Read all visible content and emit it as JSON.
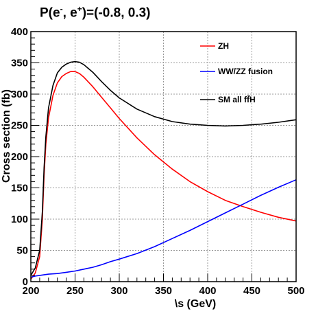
{
  "chart_data": {
    "type": "line",
    "title": "P(e⁻, e⁺)=(-0.8, 0.3)",
    "title_parts": {
      "lead": "P(e",
      "minus": "-",
      "mid": ", e",
      "plus": "+",
      "tail": ")=(-0.8, 0.3)"
    },
    "xlabel": "\\s (GeV)",
    "ylabel": "Cross section (fb)",
    "xlim": [
      200,
      500
    ],
    "ylim": [
      0,
      400
    ],
    "xticks": [
      200,
      250,
      300,
      350,
      400,
      450,
      500
    ],
    "yticks": [
      0,
      50,
      100,
      150,
      200,
      250,
      300,
      350,
      400
    ],
    "grid": true,
    "legend_position": "top-right",
    "series": [
      {
        "name": "ZH",
        "color": "#ff0000",
        "x": [
          200,
          205,
          210,
          213,
          215,
          217,
          220,
          225,
          230,
          235,
          240,
          245,
          250,
          255,
          260,
          270,
          280,
          290,
          300,
          320,
          340,
          360,
          380,
          400,
          420,
          440,
          460,
          480,
          500
        ],
        "y": [
          4,
          14,
          40,
          100,
          170,
          220,
          262,
          298,
          318,
          328,
          333,
          336,
          336,
          333,
          327,
          312,
          295,
          278,
          261,
          230,
          203,
          180,
          160,
          144,
          130,
          120,
          111,
          103,
          97
        ]
      },
      {
        "name": "WW/ZZ fusion",
        "color": "#0000ff",
        "x": [
          200,
          205,
          210,
          220,
          230,
          240,
          250,
          260,
          270,
          280,
          290,
          300,
          320,
          340,
          360,
          380,
          400,
          420,
          440,
          460,
          480,
          500
        ],
        "y": [
          7,
          9,
          10,
          12,
          13,
          15,
          17,
          20,
          23,
          27,
          32,
          36,
          45,
          56,
          69,
          82,
          96,
          110,
          124,
          138,
          151,
          163
        ]
      },
      {
        "name": "SM all ff̄H",
        "color": "#000000",
        "x": [
          200,
          205,
          210,
          213,
          215,
          217,
          220,
          225,
          230,
          235,
          240,
          245,
          250,
          255,
          260,
          270,
          280,
          290,
          300,
          320,
          340,
          360,
          380,
          400,
          420,
          440,
          460,
          480,
          500
        ],
        "y": [
          10,
          22,
          50,
          112,
          182,
          232,
          278,
          314,
          334,
          343,
          348,
          351,
          352,
          351,
          347,
          335,
          320,
          306,
          294,
          276,
          264,
          256,
          252,
          250,
          249,
          250,
          252,
          255,
          259
        ]
      }
    ]
  }
}
